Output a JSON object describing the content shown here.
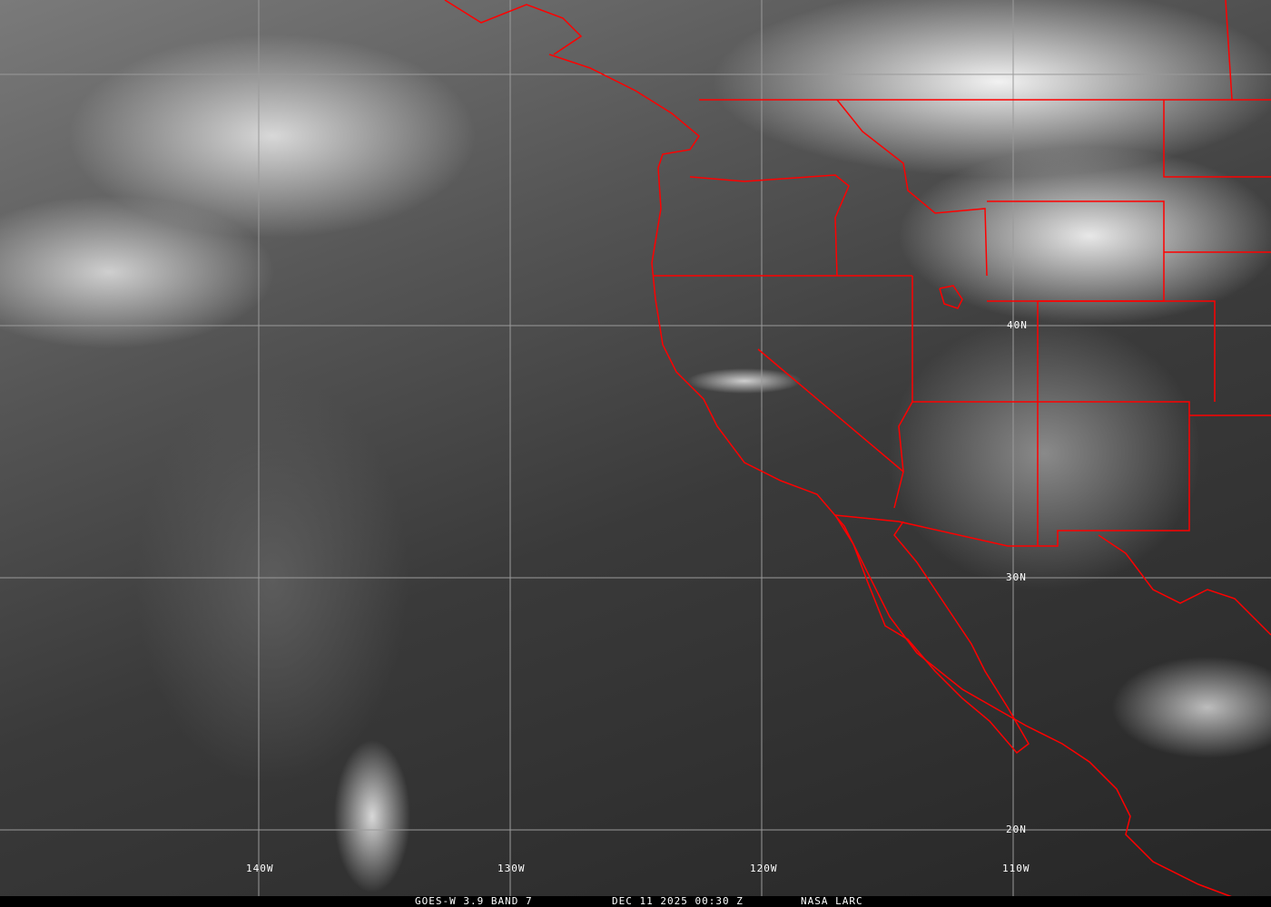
{
  "image": {
    "type": "satellite infrared imagery",
    "border_color": "#ff0000",
    "grid_color": "#aaaaaa"
  },
  "grid_labels": {
    "longitude": [
      "140W",
      "130W",
      "120W",
      "110W"
    ],
    "latitude": [
      "40N",
      "30N",
      "20N"
    ]
  },
  "caption": {
    "satellite": "GOES-W 3.9 BAND 7",
    "datetime": "DEC 11 2025 00:30 Z",
    "source": "NASA LARC"
  }
}
